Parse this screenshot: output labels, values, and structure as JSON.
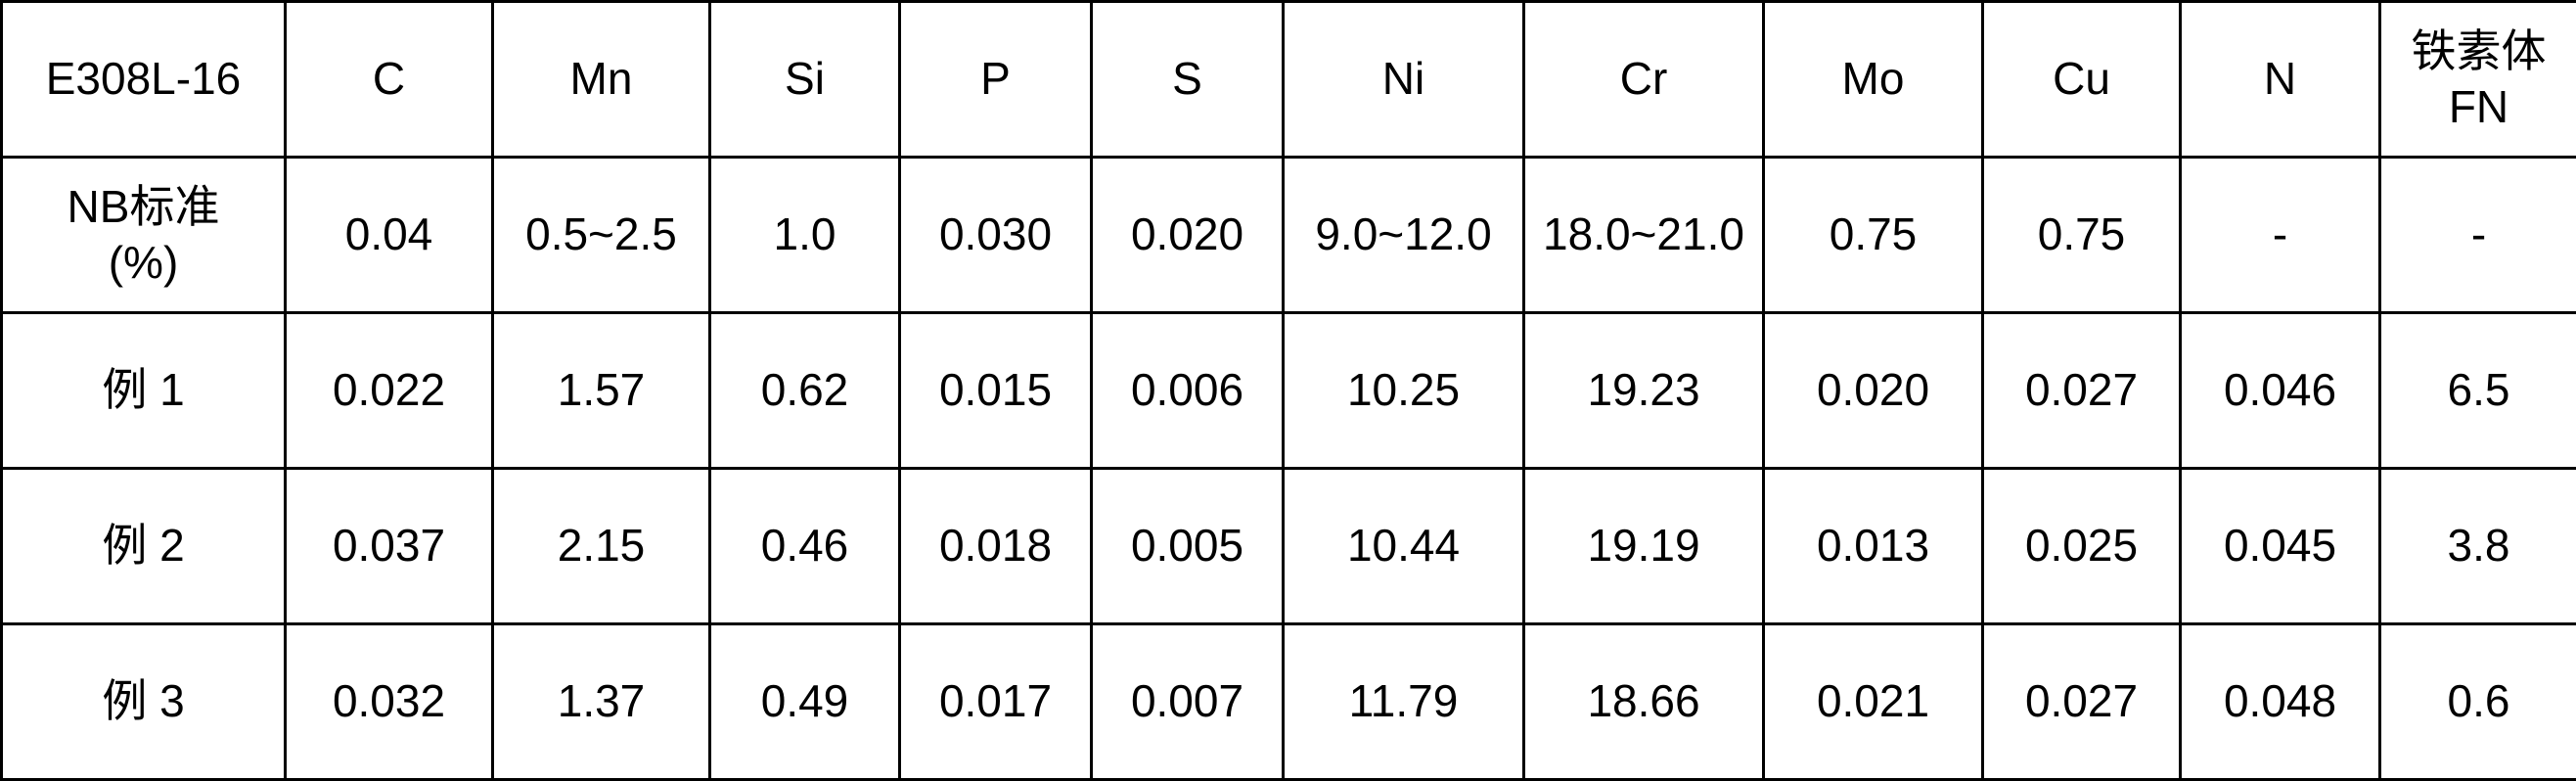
{
  "table": {
    "corner_label": "E308L-16",
    "columns": [
      "C",
      "Mn",
      "Si",
      "P",
      "S",
      "Ni",
      "Cr",
      "Mo",
      "Cu",
      "N",
      "铁素体\nFN"
    ],
    "rows": [
      {
        "label": "NB标准\n(%)",
        "values": [
          "0.04",
          "0.5~2.5",
          "1.0",
          "0.030",
          "0.020",
          "9.0~12.0",
          "18.0~21.0",
          "0.75",
          "0.75",
          "-",
          "-"
        ]
      },
      {
        "label": "例 1",
        "values": [
          "0.022",
          "1.57",
          "0.62",
          "0.015",
          "0.006",
          "10.25",
          "19.23",
          "0.020",
          "0.027",
          "0.046",
          "6.5"
        ]
      },
      {
        "label": "例 2",
        "values": [
          "0.037",
          "2.15",
          "0.46",
          "0.018",
          "0.005",
          "10.44",
          "19.19",
          "0.013",
          "0.025",
          "0.045",
          "3.8"
        ]
      },
      {
        "label": "例 3",
        "values": [
          "0.032",
          "1.37",
          "0.49",
          "0.017",
          "0.007",
          "11.79",
          "18.66",
          "0.021",
          "0.027",
          "0.048",
          "0.6"
        ]
      }
    ],
    "colors": {
      "border": "#000000",
      "text": "#000000",
      "background": "#ffffff"
    }
  }
}
